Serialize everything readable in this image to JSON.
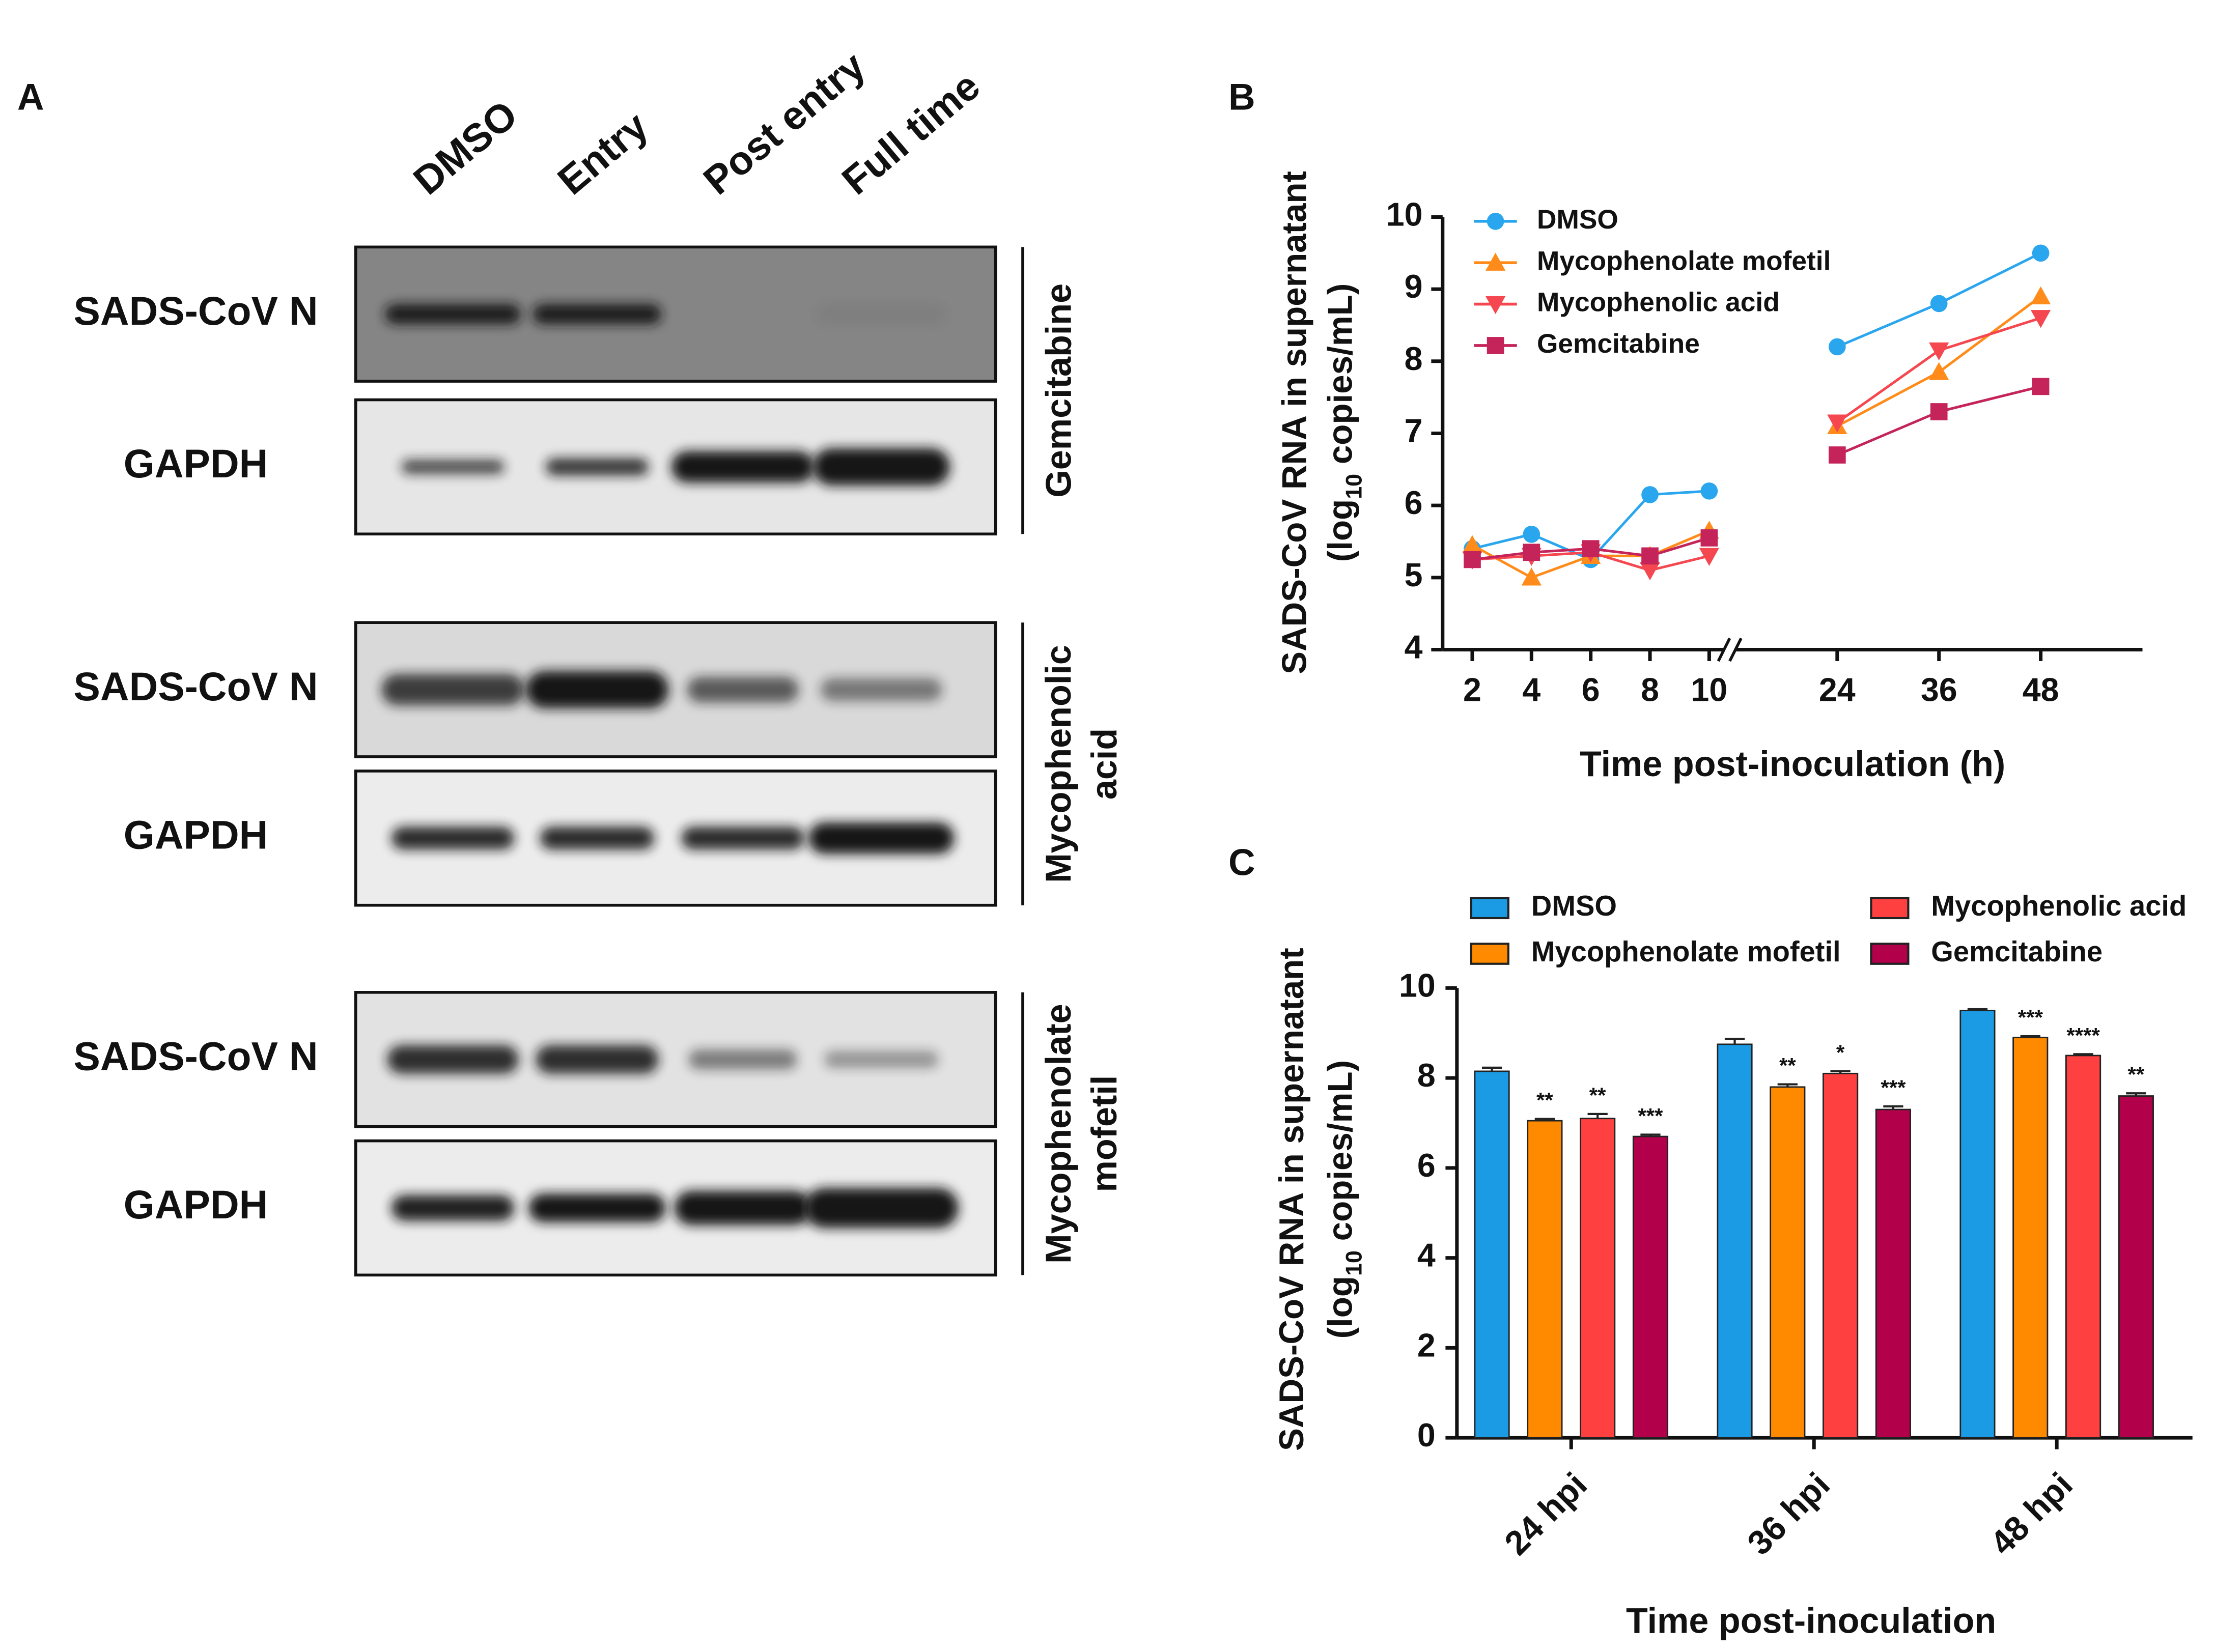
{
  "panel_a": {
    "label": "A",
    "lanes": [
      "DMSO",
      "Entry",
      "Post entry",
      "Full time"
    ],
    "blots": [
      {
        "treatment": [
          "Gemcitabine"
        ],
        "rows": [
          "SADS-CoV N",
          "GAPDH"
        ]
      },
      {
        "treatment": [
          "Mycophenolic",
          "acid"
        ],
        "rows": [
          "SADS-CoV N",
          "GAPDH"
        ]
      },
      {
        "treatment": [
          "Mycophenolate",
          "mofetil"
        ],
        "rows": [
          "SADS-CoV N",
          "GAPDH"
        ]
      }
    ]
  },
  "chart_data": [
    {
      "panel": "B",
      "type": "line",
      "x": [
        2,
        4,
        6,
        8,
        10,
        24,
        36,
        48
      ],
      "xlim": [
        [
          1,
          10.5
        ],
        [
          12,
          60
        ]
      ],
      "xticks": [
        2,
        4,
        6,
        8,
        10,
        24,
        36,
        48
      ],
      "ylim": [
        4,
        10
      ],
      "yticks": [
        4,
        5,
        6,
        7,
        8,
        9,
        10
      ],
      "xlabel": "Time post-inoculation (h)",
      "ylabel": [
        "SADS-CoV RNA in supernatant",
        [
          "(log",
          "10",
          " copies/mL)"
        ]
      ],
      "legend": "upper left",
      "series": [
        {
          "name": "DMSO",
          "color": "#2aa6ee",
          "marker": "circle",
          "values": [
            5.4,
            5.6,
            5.25,
            6.15,
            6.2,
            8.2,
            8.8,
            9.5
          ]
        },
        {
          "name": "Mycophenolate mofetil",
          "color": "#ff8c1a",
          "marker": "triangle-up",
          "values": [
            5.45,
            5.0,
            5.3,
            5.3,
            5.65,
            7.1,
            7.85,
            8.9
          ]
        },
        {
          "name": "Mycophenolic acid",
          "color": "#f5474f",
          "marker": "triangle-down",
          "values": [
            5.25,
            5.3,
            5.35,
            5.1,
            5.3,
            7.15,
            8.15,
            8.6
          ]
        },
        {
          "name": "Gemcitabine",
          "color": "#c4245a",
          "marker": "square",
          "values": [
            5.25,
            5.35,
            5.4,
            5.3,
            5.55,
            6.7,
            7.3,
            7.65
          ]
        }
      ]
    },
    {
      "panel": "C",
      "type": "bar",
      "categories": [
        "24 hpi",
        "36 hpi",
        "48 hpi"
      ],
      "ylim": [
        0,
        10
      ],
      "yticks": [
        0,
        2,
        4,
        6,
        8,
        10
      ],
      "xlabel": "Time post-inoculation",
      "ylabel": [
        "SADS-CoV RNA in supernatant",
        [
          "(log",
          "10",
          " copies/mL)"
        ]
      ],
      "legend": "top",
      "series": [
        {
          "name": "DMSO",
          "color": "#1a9be3",
          "values": [
            8.15,
            8.75,
            9.5
          ],
          "errors": [
            0.08,
            0.12,
            0.03
          ]
        },
        {
          "name": "Mycophenolate mofetil",
          "color": "#ff8a00",
          "values": [
            7.05,
            7.8,
            8.9
          ],
          "errors": [
            0.04,
            0.06,
            0.03
          ],
          "significance": [
            "**",
            "**",
            "***"
          ]
        },
        {
          "name": "Mycophenolic acid",
          "color": "#ff4040",
          "values": [
            7.1,
            8.1,
            8.5
          ],
          "errors": [
            0.1,
            0.05,
            0.03
          ],
          "significance": [
            "**",
            "*",
            "****"
          ]
        },
        {
          "name": "Gemcitabine",
          "color": "#b3004a",
          "values": [
            6.7,
            7.3,
            7.6
          ],
          "errors": [
            0.04,
            0.07,
            0.06
          ],
          "significance": [
            "***",
            "***",
            "**"
          ]
        }
      ]
    }
  ]
}
